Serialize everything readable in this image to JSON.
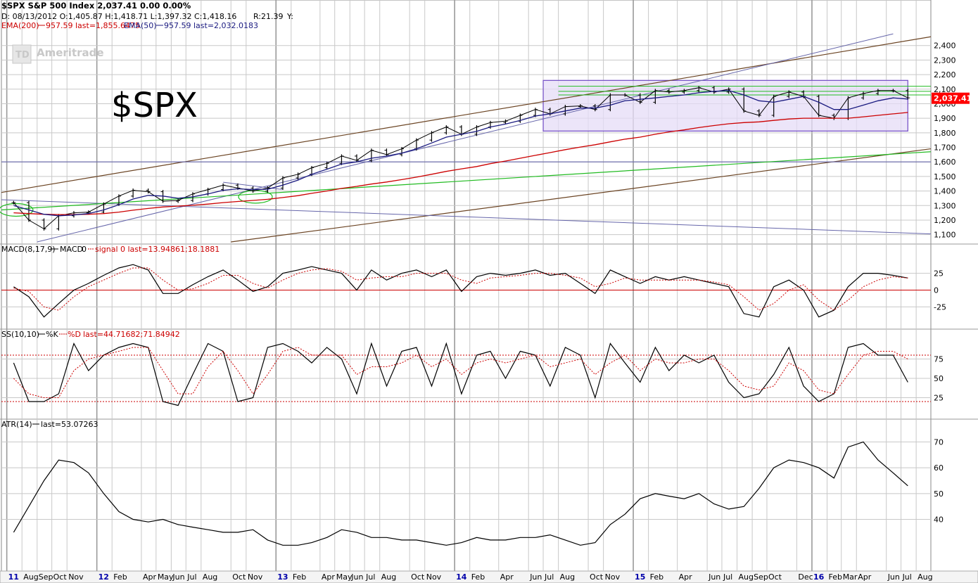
{
  "header": {
    "line1": "$SPX S&P 500 Index   2,037.41   0.00   0.00%",
    "line2": "D:  08/13/2012  O:1,405.87  H:1,418.71  L:1,397.32  C:1,418.16",
    "r_label": "R:21.39",
    "y_label": "Y:",
    "line3_ema200": "EMA(200)",
    "line3_ema200_vals": "957.59 last=1,855.6475",
    "line3_ema50": "EMA(50)",
    "line3_ema50_vals": "957.59 last=2,032.0183"
  },
  "watermark": "Ameritrade",
  "big_label": "$SPX",
  "last_price_tag": "2,037.41",
  "colors": {
    "price": "#000000",
    "ema200": "#cc0000",
    "ema50": "#1a1a80",
    "green_line": "#22bb22",
    "trend_brown": "#6b4423",
    "trend_blue": "#6666aa",
    "box_fill": "#e6dcf7",
    "box_stroke": "#7a55c8",
    "grid": "#c8c8c8",
    "price_tag_bg": "#ff0000",
    "macd_signal": "#cc0000",
    "sto_d": "#cc0000"
  },
  "chart_data": [
    {
      "type": "line",
      "panel": "price",
      "title": "$SPX S&P 500 Index",
      "ylim": [
        1050,
        2500
      ],
      "y_ticks": [
        "2,400",
        "2,300",
        "2,200",
        "2,100",
        "2,000",
        "1,900",
        "1,800",
        "1,700",
        "1,600",
        "1,500",
        "1,400",
        "1,300",
        "1,200",
        "1,100"
      ],
      "y_tick_values": [
        2400,
        2300,
        2200,
        2100,
        2000,
        1900,
        1800,
        1700,
        1600,
        1500,
        1400,
        1300,
        1200,
        1100
      ],
      "x_labels": [
        "11",
        "Aug",
        "Sep",
        "Oct",
        "Nov",
        "12",
        "Feb",
        "Apr",
        "May",
        "Jun",
        "Jul",
        "Aug",
        "Oct",
        "Nov",
        "13",
        "Feb",
        "Apr",
        "May",
        "Jun",
        "Jul",
        "Aug",
        "Oct",
        "Nov",
        "14",
        "Feb",
        "Apr",
        "Jun",
        "Jul",
        "Aug",
        "Oct",
        "Nov",
        "15",
        "Feb",
        "Apr",
        "Jun",
        "Jul",
        "Aug",
        "Sep",
        "Oct",
        "Dec",
        "16",
        "Feb",
        "Mar",
        "Apr",
        "Jun",
        "Jul",
        "Aug"
      ],
      "x_label_years": [
        "11",
        "12",
        "13",
        "14",
        "15",
        "16"
      ],
      "x_label_dates": [
        "2011-07",
        "2011-08",
        "2011-09",
        "2011-10",
        "2011-11",
        "2012-01",
        "2012-02",
        "2012-04",
        "2012-05",
        "2012-06",
        "2012-07",
        "2012-08",
        "2012-10",
        "2012-11",
        "2013-01",
        "2013-02",
        "2013-04",
        "2013-05",
        "2013-06",
        "2013-07",
        "2013-08",
        "2013-10",
        "2013-11",
        "2014-01",
        "2014-02",
        "2014-04",
        "2014-06",
        "2014-07",
        "2014-08",
        "2014-10",
        "2014-11",
        "2015-01",
        "2015-02",
        "2015-04",
        "2015-06",
        "2015-07",
        "2015-08",
        "2015-09",
        "2015-10",
        "2015-12",
        "2016-01",
        "2016-02",
        "2016-03",
        "2016-04",
        "2016-06",
        "2016-07",
        "2016-08"
      ],
      "xlim": [
        "2011-06-20",
        "2016-08-31"
      ],
      "x": [
        "2011-07",
        "2011-08",
        "2011-09",
        "2011-10",
        "2011-11",
        "2011-12",
        "2012-01",
        "2012-02",
        "2012-03",
        "2012-04",
        "2012-05",
        "2012-06",
        "2012-07",
        "2012-08",
        "2012-09",
        "2012-10",
        "2012-11",
        "2012-12",
        "2013-01",
        "2013-02",
        "2013-03",
        "2013-04",
        "2013-05",
        "2013-06",
        "2013-07",
        "2013-08",
        "2013-09",
        "2013-10",
        "2013-11",
        "2013-12",
        "2014-01",
        "2014-02",
        "2014-03",
        "2014-04",
        "2014-05",
        "2014-06",
        "2014-07",
        "2014-08",
        "2014-09",
        "2014-10",
        "2014-11",
        "2014-12",
        "2015-01",
        "2015-02",
        "2015-03",
        "2015-04",
        "2015-05",
        "2015-06",
        "2015-07",
        "2015-08",
        "2015-09",
        "2015-10",
        "2015-11",
        "2015-12",
        "2016-01",
        "2016-02",
        "2016-03",
        "2016-04",
        "2016-05",
        "2016-06",
        "2016-07"
      ],
      "series": [
        {
          "values": [
            1320,
            1200,
            1140,
            1230,
            1250,
            1255,
            1310,
            1365,
            1405,
            1395,
            1330,
            1335,
            1380,
            1410,
            1440,
            1420,
            1400,
            1420,
            1490,
            1515,
            1560,
            1590,
            1640,
            1610,
            1680,
            1650,
            1690,
            1750,
            1800,
            1840,
            1790,
            1840,
            1870,
            1880,
            1920,
            1960,
            1930,
            1980,
            1985,
            1960,
            2060,
            2060,
            2010,
            2090,
            2080,
            2090,
            2110,
            2080,
            2100,
            1950,
            1920,
            2050,
            2080,
            2050,
            1920,
            1900,
            2040,
            2070,
            2090,
            2090,
            2040
          ]
        },
        {
          "name": "EMA(200)",
          "values": [
            1250,
            1245,
            1240,
            1238,
            1238,
            1240,
            1245,
            1255,
            1268,
            1280,
            1290,
            1296,
            1302,
            1310,
            1320,
            1328,
            1335,
            1343,
            1355,
            1368,
            1384,
            1400,
            1418,
            1432,
            1448,
            1462,
            1478,
            1495,
            1515,
            1535,
            1552,
            1568,
            1588,
            1606,
            1625,
            1645,
            1664,
            1684,
            1702,
            1718,
            1738,
            1756,
            1770,
            1790,
            1806,
            1820,
            1836,
            1850,
            1862,
            1870,
            1875,
            1885,
            1895,
            1900,
            1900,
            1900,
            1900,
            1910,
            1920,
            1930,
            1940
          ]
        },
        {
          "name": "EMA(50)",
          "values": [
            1300,
            1270,
            1240,
            1230,
            1235,
            1245,
            1270,
            1305,
            1345,
            1370,
            1365,
            1350,
            1360,
            1380,
            1405,
            1415,
            1410,
            1412,
            1440,
            1475,
            1515,
            1550,
            1585,
            1600,
            1625,
            1640,
            1660,
            1690,
            1730,
            1770,
            1790,
            1810,
            1840,
            1860,
            1885,
            1915,
            1930,
            1950,
            1970,
            1970,
            1990,
            2020,
            2030,
            2040,
            2050,
            2060,
            2075,
            2085,
            2090,
            2060,
            2020,
            2010,
            2030,
            2050,
            2010,
            1960,
            1960,
            1990,
            2020,
            2040,
            2032
          ]
        }
      ],
      "annotations": {
        "box_range": {
          "x": [
            "2014-07-01",
            "2016-07-15"
          ],
          "y": [
            1812,
            2160
          ]
        },
        "green_lines_right": [
          2120,
          2085,
          2060
        ]
      }
    },
    {
      "type": "line",
      "panel": "macd",
      "title": "MACD(8,17,9)",
      "ylim": [
        -55,
        55
      ],
      "y_ticks": [
        "25",
        "0",
        "-25"
      ],
      "y_tick_values": [
        25,
        0,
        -25
      ],
      "x": [
        "2011-07",
        "2011-08",
        "2011-09",
        "2011-10",
        "2011-11",
        "2011-12",
        "2012-01",
        "2012-02",
        "2012-03",
        "2012-04",
        "2012-05",
        "2012-06",
        "2012-07",
        "2012-08",
        "2012-09",
        "2012-10",
        "2012-11",
        "2012-12",
        "2013-01",
        "2013-02",
        "2013-03",
        "2013-04",
        "2013-05",
        "2013-06",
        "2013-07",
        "2013-08",
        "2013-09",
        "2013-10",
        "2013-11",
        "2013-12",
        "2014-01",
        "2014-02",
        "2014-03",
        "2014-04",
        "2014-05",
        "2014-06",
        "2014-07",
        "2014-08",
        "2014-09",
        "2014-10",
        "2014-11",
        "2014-12",
        "2015-01",
        "2015-02",
        "2015-03",
        "2015-04",
        "2015-05",
        "2015-06",
        "2015-07",
        "2015-08",
        "2015-09",
        "2015-10",
        "2015-11",
        "2015-12",
        "2016-01",
        "2016-02",
        "2016-03",
        "2016-04",
        "2016-05",
        "2016-06",
        "2016-07"
      ],
      "series": [
        {
          "name": "MACD",
          "values": [
            5,
            -10,
            -40,
            -20,
            0,
            10,
            22,
            33,
            38,
            30,
            -5,
            -5,
            8,
            20,
            30,
            15,
            -2,
            5,
            25,
            30,
            35,
            30,
            25,
            0,
            30,
            15,
            25,
            30,
            20,
            30,
            -2,
            20,
            25,
            22,
            25,
            30,
            22,
            25,
            10,
            -5,
            30,
            20,
            10,
            20,
            15,
            20,
            15,
            10,
            5,
            -35,
            -40,
            5,
            15,
            0,
            -40,
            -30,
            5,
            25,
            25,
            22,
            18
          ]
        },
        {
          "name": "signal",
          "values": [
            3,
            -2,
            -25,
            -30,
            -10,
            5,
            15,
            25,
            33,
            33,
            15,
            0,
            2,
            10,
            22,
            22,
            10,
            3,
            15,
            25,
            30,
            32,
            28,
            15,
            18,
            20,
            20,
            25,
            25,
            25,
            15,
            10,
            18,
            20,
            22,
            25,
            25,
            22,
            18,
            5,
            10,
            18,
            15,
            15,
            15,
            15,
            15,
            12,
            8,
            -10,
            -30,
            -20,
            0,
            8,
            -15,
            -30,
            -15,
            5,
            15,
            20,
            18
          ]
        }
      ],
      "legend_text": "MACD",
      "legend_zero": "0",
      "legend_signal": "signal",
      "legend_last": "0 last=13.94861;18.1881"
    },
    {
      "type": "line",
      "panel": "stochastic",
      "title": "SS(10,10)",
      "ylim": [
        0,
        100
      ],
      "y_ticks": [
        "75",
        "50",
        "25"
      ],
      "y_tick_values": [
        75,
        50,
        25
      ],
      "hlines": [
        80,
        20
      ],
      "x": [
        "2011-07",
        "2011-08",
        "2011-09",
        "2011-10",
        "2011-11",
        "2011-12",
        "2012-01",
        "2012-02",
        "2012-03",
        "2012-04",
        "2012-05",
        "2012-06",
        "2012-07",
        "2012-08",
        "2012-09",
        "2012-10",
        "2012-11",
        "2012-12",
        "2013-01",
        "2013-02",
        "2013-03",
        "2013-04",
        "2013-05",
        "2013-06",
        "2013-07",
        "2013-08",
        "2013-09",
        "2013-10",
        "2013-11",
        "2013-12",
        "2014-01",
        "2014-02",
        "2014-03",
        "2014-04",
        "2014-05",
        "2014-06",
        "2014-07",
        "2014-08",
        "2014-09",
        "2014-10",
        "2014-11",
        "2014-12",
        "2015-01",
        "2015-02",
        "2015-03",
        "2015-04",
        "2015-05",
        "2015-06",
        "2015-07",
        "2015-08",
        "2015-09",
        "2015-10",
        "2015-11",
        "2015-12",
        "2016-01",
        "2016-02",
        "2016-03",
        "2016-04",
        "2016-05",
        "2016-06",
        "2016-07"
      ],
      "series": [
        {
          "name": "%K",
          "values": [
            70,
            20,
            20,
            30,
            95,
            60,
            80,
            90,
            95,
            90,
            20,
            15,
            55,
            95,
            85,
            20,
            25,
            90,
            95,
            85,
            70,
            90,
            75,
            30,
            95,
            40,
            85,
            90,
            40,
            95,
            30,
            80,
            85,
            50,
            85,
            80,
            40,
            90,
            80,
            25,
            95,
            70,
            45,
            90,
            60,
            80,
            70,
            80,
            45,
            25,
            30,
            55,
            90,
            40,
            20,
            30,
            90,
            95,
            80,
            80,
            45
          ]
        },
        {
          "name": "%D",
          "values": [
            50,
            30,
            25,
            25,
            60,
            75,
            80,
            85,
            90,
            90,
            60,
            30,
            30,
            65,
            85,
            60,
            30,
            55,
            85,
            90,
            80,
            80,
            80,
            55,
            65,
            65,
            70,
            80,
            65,
            75,
            55,
            70,
            75,
            70,
            75,
            80,
            65,
            70,
            75,
            55,
            70,
            80,
            60,
            75,
            70,
            70,
            75,
            75,
            60,
            40,
            35,
            40,
            70,
            60,
            35,
            30,
            55,
            80,
            85,
            85,
            75
          ]
        }
      ],
      "legend_k": "%K",
      "legend_d": "%D",
      "legend_last": "last=44.71682;71.84942"
    },
    {
      "type": "line",
      "panel": "atr",
      "title": "ATR(14)",
      "ylim": [
        20,
        75
      ],
      "y_ticks": [
        "70",
        "60",
        "50",
        "40"
      ],
      "y_tick_values": [
        70,
        60,
        50,
        40
      ],
      "x": [
        "2011-07",
        "2011-08",
        "2011-09",
        "2011-10",
        "2011-11",
        "2011-12",
        "2012-01",
        "2012-02",
        "2012-03",
        "2012-04",
        "2012-05",
        "2012-06",
        "2012-07",
        "2012-08",
        "2012-09",
        "2012-10",
        "2012-11",
        "2012-12",
        "2013-01",
        "2013-02",
        "2013-03",
        "2013-04",
        "2013-05",
        "2013-06",
        "2013-07",
        "2013-08",
        "2013-09",
        "2013-10",
        "2013-11",
        "2013-12",
        "2014-01",
        "2014-02",
        "2014-03",
        "2014-04",
        "2014-05",
        "2014-06",
        "2014-07",
        "2014-08",
        "2014-09",
        "2014-10",
        "2014-11",
        "2014-12",
        "2015-01",
        "2015-02",
        "2015-03",
        "2015-04",
        "2015-05",
        "2015-06",
        "2015-07",
        "2015-08",
        "2015-09",
        "2015-10",
        "2015-11",
        "2015-12",
        "2016-01",
        "2016-02",
        "2016-03",
        "2016-04",
        "2016-05",
        "2016-06",
        "2016-07"
      ],
      "series": [
        {
          "values": [
            35,
            45,
            55,
            63,
            62,
            58,
            50,
            43,
            40,
            39,
            40,
            38,
            37,
            36,
            35,
            35,
            36,
            32,
            30,
            30,
            31,
            33,
            36,
            35,
            33,
            33,
            32,
            32,
            31,
            30,
            31,
            33,
            32,
            32,
            33,
            33,
            34,
            32,
            30,
            31,
            38,
            42,
            48,
            50,
            49,
            48,
            50,
            46,
            44,
            45,
            52,
            60,
            63,
            62,
            60,
            56,
            68,
            70,
            63,
            58,
            53
          ]
        }
      ],
      "legend_last": "last=53.07263"
    }
  ]
}
